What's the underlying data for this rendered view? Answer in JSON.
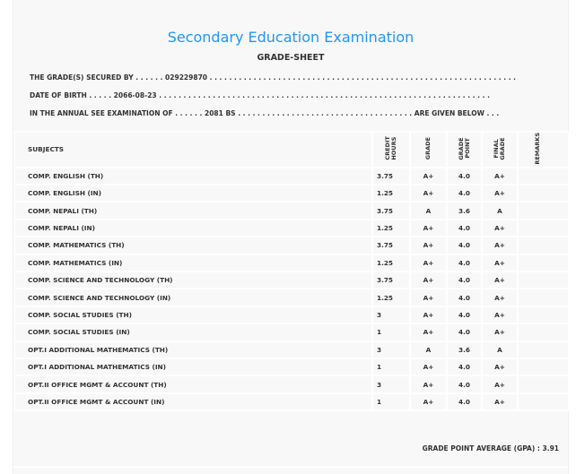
{
  "title": "Secondary Education Examination",
  "subtitle": "GRADE-SHEET",
  "lines": {
    "secured_by": "THE GRADE(S) SECURED BY . . . . . . 029229870 . . . . . . . . . . . . . . . . . . . . . . . . . . . . . . . . . . . . . . . . . . . . . . . . . . . . . . . . . . . . . . .",
    "dob": "DATE OF BIRTH . . . . . 2066-08-23 . . . . . . . . . . . . . . . . . . . . . . . . . . . . . . . . . . . . . . . . . . . . . . . . . . . . . . . . . . . . . . . . . . . .",
    "exam": "IN THE ANNUAL SEE EXAMINATION OF . . . . . . 2081 BS . . . . . . . . . . . . . . . . . . . . . . . . . . . . . . . . . . . . ARE GIVEN BELOW . . ."
  },
  "headers": {
    "subjects": "SUBJECTS",
    "credit": "CREDIT HOURS",
    "grade": "GRADE",
    "point": "GRADE POINT",
    "final": "FINAL GRADE",
    "remarks": "REMARKS"
  },
  "rows": [
    {
      "s": "COMP. ENGLISH (TH)",
      "c": "3.75",
      "g": "A+",
      "p": "4.0",
      "f": "A+"
    },
    {
      "s": "COMP. ENGLISH (IN)",
      "c": "1.25",
      "g": "A+",
      "p": "4.0",
      "f": "A+"
    },
    {
      "s": "COMP. NEPALI (TH)",
      "c": "3.75",
      "g": "A",
      "p": "3.6",
      "f": "A"
    },
    {
      "s": "COMP. NEPALI (IN)",
      "c": "1.25",
      "g": "A+",
      "p": "4.0",
      "f": "A+"
    },
    {
      "s": "COMP. MATHEMATICS (TH)",
      "c": "3.75",
      "g": "A+",
      "p": "4.0",
      "f": "A+"
    },
    {
      "s": "COMP. MATHEMATICS (IN)",
      "c": "1.25",
      "g": "A+",
      "p": "4.0",
      "f": "A+"
    },
    {
      "s": "COMP. SCIENCE AND TECHNOLOGY (TH)",
      "c": "3.75",
      "g": "A+",
      "p": "4.0",
      "f": "A+"
    },
    {
      "s": "COMP. SCIENCE AND TECHNOLOGY (IN)",
      "c": "1.25",
      "g": "A+",
      "p": "4.0",
      "f": "A+"
    },
    {
      "s": "COMP. SOCIAL STUDIES (TH)",
      "c": "3",
      "g": "A+",
      "p": "4.0",
      "f": "A+"
    },
    {
      "s": "COMP. SOCIAL STUDIES (IN)",
      "c": "1",
      "g": "A+",
      "p": "4.0",
      "f": "A+"
    },
    {
      "s": "OPT.I ADDITIONAL MATHEMATICS (TH)",
      "c": "3",
      "g": "A",
      "p": "3.6",
      "f": "A"
    },
    {
      "s": "OPT.I ADDITIONAL MATHEMATICS (IN)",
      "c": "1",
      "g": "A+",
      "p": "4.0",
      "f": "A+"
    },
    {
      "s": "OPT.II OFFICE MGMT & ACCOUNT (TH)",
      "c": "3",
      "g": "A+",
      "p": "4.0",
      "f": "A+"
    },
    {
      "s": "OPT.II OFFICE MGMT & ACCOUNT (IN)",
      "c": "1",
      "g": "A+",
      "p": "4.0",
      "f": "A+"
    }
  ],
  "gpa": "GRADE POINT AVERAGE (GPA) : 3.91"
}
